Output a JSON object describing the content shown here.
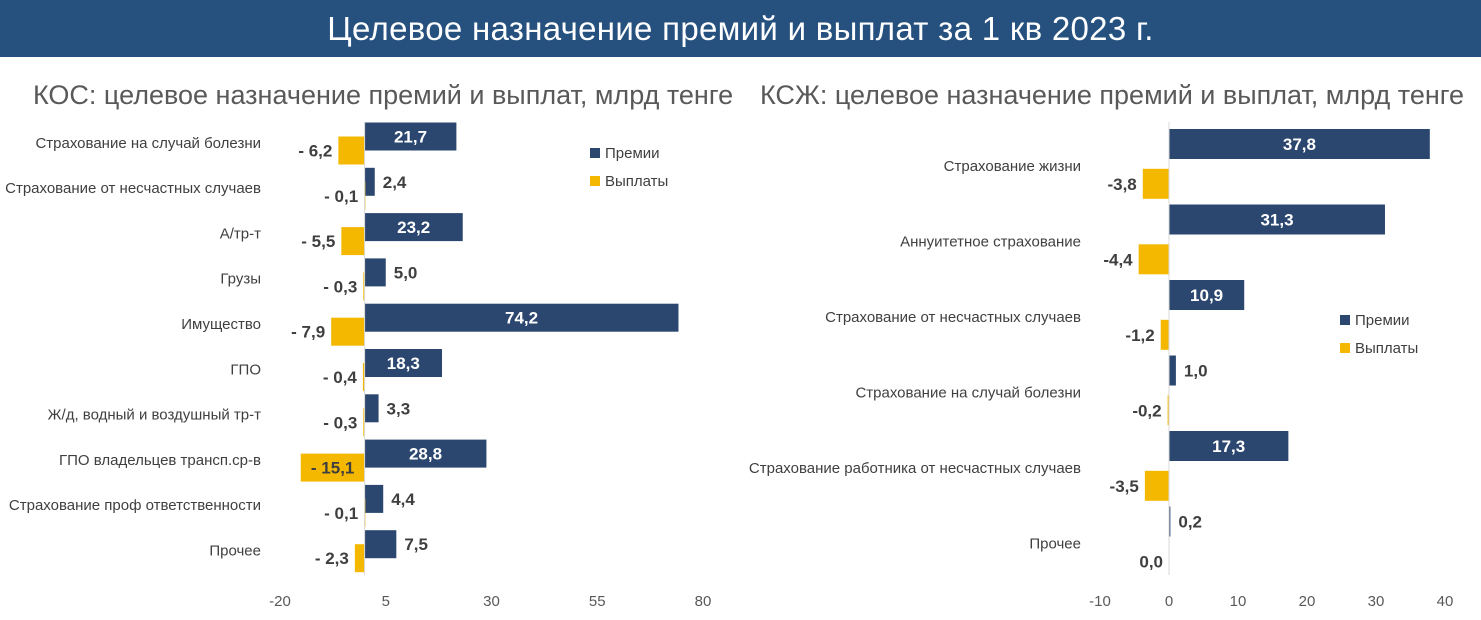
{
  "banner": {
    "title": "Целевое назначение премий и выплат за 1 кв 2023 г."
  },
  "colors": {
    "premiums": "#2b4770",
    "payouts": "#f5b800",
    "banner": "#26517f",
    "label_text": "#3f3f3f"
  },
  "chart_data": [
    {
      "type": "bar",
      "orientation": "horizontal",
      "title": "КОС: целевое назначение премий и выплат, млрд тенге",
      "categories": [
        "Страхование на случай болезни",
        "Страхование от несчастных случаев",
        "А/тр-т",
        "Грузы",
        "Имущество",
        "ГПО",
        "Ж/д, водный и воздушный тр-т",
        "ГПО владельцев трансп.ср-в",
        "Страхование проф ответственности",
        "Прочее"
      ],
      "series": [
        {
          "name": "Премии",
          "values": [
            21.7,
            2.4,
            23.2,
            5.0,
            74.2,
            18.3,
            3.3,
            28.8,
            4.4,
            7.5
          ],
          "labels": [
            "21,7",
            "2,4",
            "23,2",
            "5,0",
            "74,2",
            "18,3",
            "3,3",
            "28,8",
            "4,4",
            "7,5"
          ]
        },
        {
          "name": "Выплаты",
          "values": [
            -6.2,
            -0.1,
            -5.5,
            -0.3,
            -7.9,
            -0.4,
            -0.3,
            -15.1,
            -0.1,
            -2.3
          ],
          "labels": [
            "- 6,2",
            "- 0,1",
            "- 5,5",
            "- 0,3",
            "- 7,9",
            "- 0,4",
            "- 0,3",
            "- 15,1",
            "- 0,1",
            "- 2,3"
          ]
        }
      ],
      "xlim": [
        -20,
        80
      ],
      "xticks": [
        "-20",
        "5",
        "30",
        "55",
        "80"
      ],
      "legend": "top-right"
    },
    {
      "type": "bar",
      "orientation": "horizontal",
      "title": "КСЖ: целевое назначение премий и выплат, млрд тенге",
      "categories": [
        "Страхование жизни",
        "Аннуитетное страхование",
        "Страхование от несчастных случаев",
        "Страхование на случай болезни",
        "Страхование работника от несчастных случаев",
        "Прочее"
      ],
      "series": [
        {
          "name": "Премии",
          "values": [
            37.8,
            31.3,
            10.9,
            1.0,
            17.3,
            0.2
          ],
          "labels": [
            "37,8",
            "31,3",
            "10,9",
            "1,0",
            "17,3",
            "0,2"
          ]
        },
        {
          "name": "Выплаты",
          "values": [
            -3.8,
            -4.4,
            -1.2,
            -0.2,
            -3.5,
            0.0
          ],
          "labels": [
            "-3,8",
            "-4,4",
            "-1,2",
            "-0,2",
            "-3,5",
            "0,0"
          ]
        }
      ],
      "xlim": [
        -10,
        40
      ],
      "xticks": [
        "-10",
        "0",
        "10",
        "20",
        "30",
        "40"
      ],
      "legend": "right"
    }
  ]
}
